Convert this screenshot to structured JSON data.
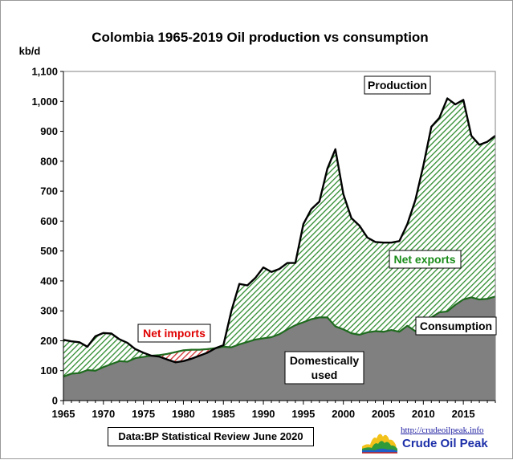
{
  "source_note": "Data:BP Statistical Review June 2020",
  "logo": {
    "url_text": "http://crudeoilpeak.info",
    "name": "Crude Oil Peak"
  },
  "colors": {
    "production_line": "#000000",
    "consumption_line": "#1f6b1f",
    "exports_hatch": "#2e8b2e",
    "imports_hatch": "#d23030",
    "domestic_fill": "#808080",
    "net_imports_text": "#e00000",
    "net_exports_text": "#1a8c1a"
  },
  "chart_data": {
    "type": "area",
    "title": "Colombia  1965-2019 Oil production  vs consumption",
    "ylabel": "kb/d",
    "xlabel": "",
    "xlim": [
      1965,
      2019
    ],
    "ylim": [
      0,
      1100
    ],
    "x_ticks": [
      "1965",
      "1970",
      "1975",
      "1980",
      "1985",
      "1990",
      "1995",
      "2000",
      "2005",
      "2010",
      "2015"
    ],
    "y_ticks": [
      "0",
      "100",
      "200",
      "300",
      "400",
      "500",
      "600",
      "700",
      "800",
      "900",
      "1,000",
      "1,100"
    ],
    "grid": false,
    "years": [
      1965,
      1966,
      1967,
      1968,
      1969,
      1970,
      1971,
      1972,
      1973,
      1974,
      1975,
      1976,
      1977,
      1978,
      1979,
      1980,
      1981,
      1982,
      1983,
      1984,
      1985,
      1986,
      1987,
      1988,
      1989,
      1990,
      1991,
      1992,
      1993,
      1994,
      1995,
      1996,
      1997,
      1998,
      1999,
      2000,
      2001,
      2002,
      2003,
      2004,
      2005,
      2006,
      2007,
      2008,
      2009,
      2010,
      2011,
      2012,
      2013,
      2014,
      2015,
      2016,
      2017,
      2018,
      2019
    ],
    "series": [
      {
        "name": "Production",
        "values": [
          203,
          198,
          195,
          180,
          215,
          226,
          224,
          205,
          193,
          172,
          160,
          150,
          147,
          137,
          128,
          132,
          140,
          150,
          160,
          175,
          185,
          300,
          390,
          385,
          410,
          445,
          430,
          440,
          460,
          460,
          590,
          640,
          665,
          775,
          840,
          690,
          610,
          585,
          545,
          530,
          528,
          528,
          533,
          590,
          670,
          785,
          915,
          945,
          1010,
          990,
          1005,
          885,
          855,
          865,
          885
        ]
      },
      {
        "name": "Consumption",
        "values": [
          80,
          90,
          92,
          102,
          100,
          112,
          122,
          132,
          130,
          142,
          146,
          150,
          152,
          156,
          162,
          168,
          170,
          170,
          172,
          175,
          180,
          178,
          188,
          196,
          204,
          208,
          212,
          222,
          238,
          252,
          262,
          272,
          278,
          278,
          248,
          238,
          225,
          220,
          228,
          232,
          230,
          236,
          230,
          250,
          232,
          258,
          278,
          295,
          298,
          320,
          338,
          345,
          338,
          340,
          348
        ]
      }
    ],
    "annotations": [
      "Production",
      "Net exports",
      "Net imports",
      "Consumption",
      "Domestically used"
    ],
    "annotation_lines": {
      "domestically_used": [
        "Domestically",
        "used"
      ]
    }
  }
}
